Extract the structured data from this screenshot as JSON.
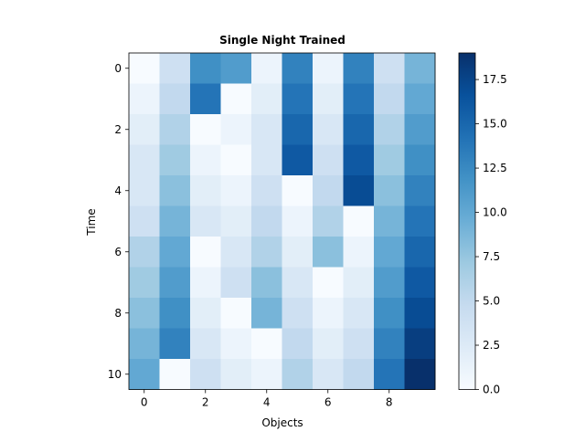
{
  "chart_data": {
    "type": "heatmap",
    "title": "Single Night Trained",
    "xlabel": "Objects",
    "ylabel": "Time",
    "x_ticks": [
      0,
      2,
      4,
      6,
      8
    ],
    "y_ticks": [
      0,
      2,
      4,
      6,
      8,
      10
    ],
    "colorbar": {
      "min": 0,
      "max": 19,
      "ticks": [
        0.0,
        2.5,
        5.0,
        7.5,
        10.0,
        12.5,
        15.0,
        17.5
      ],
      "tick_labels": [
        "0.0",
        "2.5",
        "5.0",
        "7.5",
        "10.0",
        "12.5",
        "15.0",
        "17.5"
      ],
      "colormap": "Blues"
    },
    "x_categories": [
      0,
      1,
      2,
      3,
      4,
      5,
      6,
      7,
      8,
      9
    ],
    "y_categories": [
      0,
      1,
      2,
      3,
      4,
      5,
      6,
      7,
      8,
      9,
      10
    ],
    "values": [
      [
        0,
        4,
        12,
        11,
        1,
        13,
        1,
        13,
        4,
        9
      ],
      [
        1,
        5,
        14,
        0,
        2,
        14,
        2,
        14,
        5,
        10
      ],
      [
        2,
        6,
        0,
        1,
        3,
        15,
        3,
        15,
        6,
        11
      ],
      [
        3,
        7,
        1,
        0,
        3,
        16,
        4,
        16,
        7,
        12
      ],
      [
        3,
        8,
        2,
        1,
        4,
        0,
        5,
        17,
        8,
        13
      ],
      [
        4,
        9,
        3,
        2,
        5,
        1,
        6,
        0,
        9,
        14
      ],
      [
        6,
        10,
        0,
        3,
        6,
        2,
        8,
        1,
        10,
        15
      ],
      [
        7,
        11,
        1,
        4,
        8,
        3,
        0,
        2,
        11,
        16
      ],
      [
        8,
        12,
        2,
        0,
        9,
        4,
        1,
        3,
        12,
        17
      ],
      [
        9,
        13,
        3,
        1,
        0,
        5,
        2,
        4,
        13,
        18
      ],
      [
        10,
        0,
        4,
        2,
        1,
        6,
        3,
        5,
        14,
        19
      ]
    ]
  }
}
